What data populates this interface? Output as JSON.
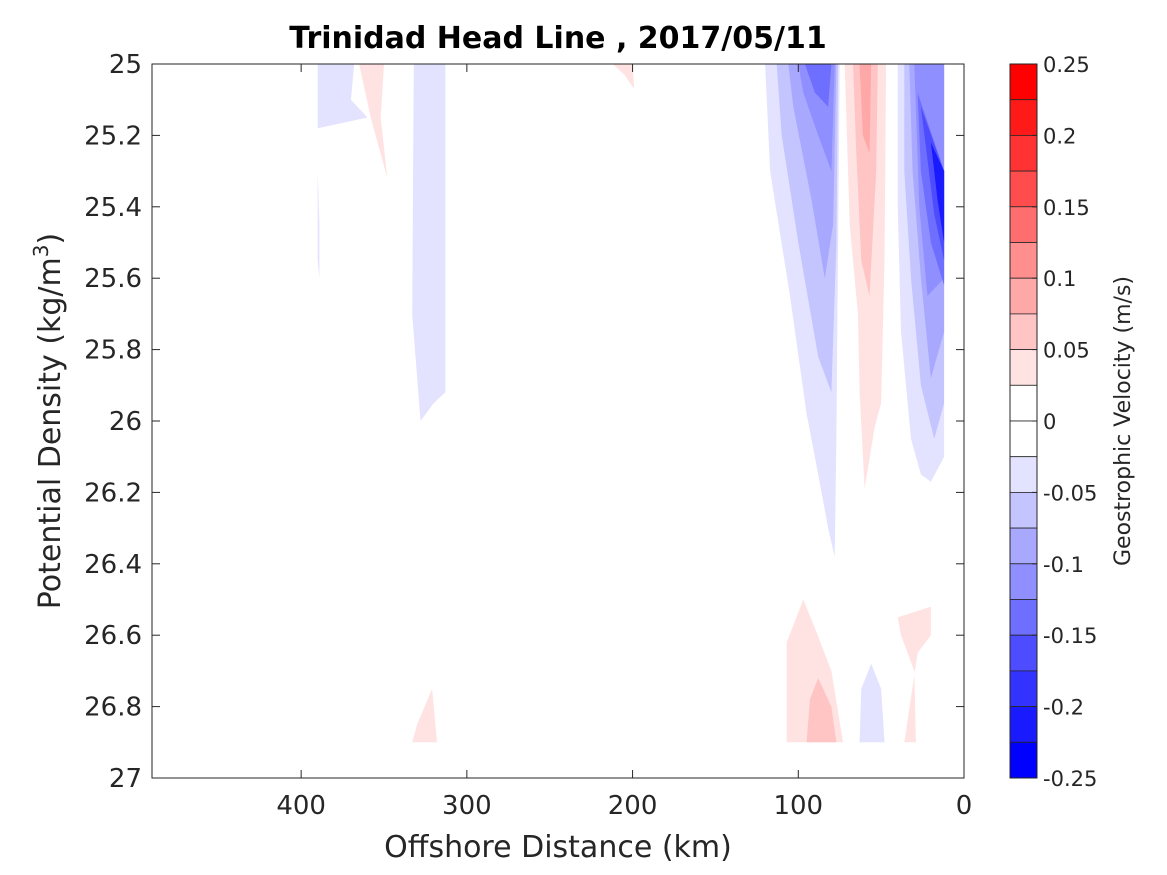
{
  "chart_data": {
    "type": "heatmap",
    "title": "Trinidad Head Line , 2017/05/11",
    "xlabel": "Offshore Distance (km)",
    "ylabel": "Potential Density (kg/m",
    "ylabel_sup": "3",
    "ylabel_close": ")",
    "colorbar_label": "Geostrophic Velocity (m/s)",
    "x_reversed": true,
    "xlim": [
      490,
      0
    ],
    "ylim": [
      25,
      27
    ],
    "y_reversed": true,
    "x_ticks": [
      400,
      300,
      200,
      100,
      0
    ],
    "y_ticks": [
      25,
      25.2,
      25.4,
      25.6,
      25.8,
      26,
      26.2,
      26.4,
      26.6,
      26.8,
      27
    ],
    "y_tick_labels": [
      "25",
      "25.2",
      "25.4",
      "25.6",
      "25.8",
      "26",
      "26.2",
      "26.4",
      "26.6",
      "26.8",
      "27"
    ],
    "clim": [
      -0.25,
      0.25
    ],
    "colorbar_ticks": [
      0.25,
      0.2,
      0.15,
      0.1,
      0.05,
      0,
      -0.05,
      -0.1,
      -0.15,
      -0.2,
      -0.25
    ],
    "colorbar_tick_labels": [
      "0.25",
      "0.2",
      "0.15",
      "0.1",
      "0.05",
      "0",
      "-0.05",
      "-0.1",
      "-0.15",
      "-0.2",
      "-0.25"
    ],
    "colorbar_levels": [
      {
        "from": 0.225,
        "to": 0.25,
        "color": "#ff0000"
      },
      {
        "from": 0.2,
        "to": 0.225,
        "color": "#ff1a1a"
      },
      {
        "from": 0.175,
        "to": 0.2,
        "color": "#ff3333"
      },
      {
        "from": 0.15,
        "to": 0.175,
        "color": "#ff4d4d"
      },
      {
        "from": 0.125,
        "to": 0.15,
        "color": "#ff6e6e"
      },
      {
        "from": 0.1,
        "to": 0.125,
        "color": "#ff8f8f"
      },
      {
        "from": 0.075,
        "to": 0.1,
        "color": "#ffa8a8"
      },
      {
        "from": 0.05,
        "to": 0.075,
        "color": "#ffc4c4"
      },
      {
        "from": 0.025,
        "to": 0.05,
        "color": "#ffe3e3"
      },
      {
        "from": 0,
        "to": 0.025,
        "color": "#ffffff"
      },
      {
        "from": -0.025,
        "to": 0,
        "color": "#ffffff"
      },
      {
        "from": -0.05,
        "to": -0.025,
        "color": "#e3e3ff"
      },
      {
        "from": -0.075,
        "to": -0.05,
        "color": "#c4c4ff"
      },
      {
        "from": -0.1,
        "to": -0.075,
        "color": "#a8a8ff"
      },
      {
        "from": -0.125,
        "to": -0.1,
        "color": "#8f8fff"
      },
      {
        "from": -0.15,
        "to": -0.125,
        "color": "#6e6eff"
      },
      {
        "from": -0.175,
        "to": -0.15,
        "color": "#4d4dff"
      },
      {
        "from": -0.2,
        "to": -0.175,
        "color": "#3333ff"
      },
      {
        "from": -0.225,
        "to": -0.2,
        "color": "#1a1aff"
      },
      {
        "from": -0.25,
        "to": -0.225,
        "color": "#0000ff"
      }
    ],
    "regions": [
      {
        "name": "blue-patch-390km",
        "color": "#e3e3ff",
        "pts": [
          [
            390,
            25
          ],
          [
            368,
            25
          ],
          [
            370,
            25.1
          ],
          [
            360,
            25.15
          ],
          [
            390,
            25.18
          ]
        ]
      },
      {
        "name": "blue-sliver-390km",
        "color": "#e3e3ff",
        "pts": [
          [
            390,
            25.3
          ],
          [
            389,
            25.45
          ],
          [
            389,
            25.6
          ],
          [
            390,
            25.55
          ]
        ]
      },
      {
        "name": "red-patch-355km",
        "color": "#ffe3e3",
        "pts": [
          [
            365,
            25
          ],
          [
            350,
            25
          ],
          [
            352,
            25.15
          ],
          [
            348,
            25.32
          ],
          [
            358,
            25.15
          ]
        ]
      },
      {
        "name": "blue-patch-325km",
        "color": "#e3e3ff",
        "pts": [
          [
            332,
            25
          ],
          [
            313,
            25
          ],
          [
            313,
            25.92
          ],
          [
            320,
            25.95
          ],
          [
            328,
            26
          ],
          [
            333,
            25.7
          ]
        ]
      },
      {
        "name": "red-patch-205km",
        "color": "#ffe3e3",
        "pts": [
          [
            212,
            25
          ],
          [
            200,
            25
          ],
          [
            199,
            25.07
          ],
          [
            205,
            25.03
          ]
        ]
      },
      {
        "name": "blue-band-outer",
        "color": "#e3e3ff",
        "pts": [
          [
            120,
            25
          ],
          [
            75,
            25
          ],
          [
            76,
            25.5
          ],
          [
            77,
            26.05
          ],
          [
            78,
            26.38
          ],
          [
            82,
            26.3
          ],
          [
            88,
            26.15
          ],
          [
            95,
            25.98
          ],
          [
            105,
            25.65
          ],
          [
            117,
            25.3
          ]
        ]
      },
      {
        "name": "blue-band-l1",
        "color": "#c4c4ff",
        "pts": [
          [
            113,
            25
          ],
          [
            76,
            25
          ],
          [
            77,
            25.5
          ],
          [
            80,
            25.92
          ],
          [
            88,
            25.82
          ],
          [
            100,
            25.5
          ],
          [
            110,
            25.2
          ]
        ]
      },
      {
        "name": "blue-band-l2",
        "color": "#a8a8ff",
        "pts": [
          [
            106,
            25
          ],
          [
            77,
            25
          ],
          [
            79,
            25.45
          ],
          [
            84,
            25.6
          ],
          [
            92,
            25.38
          ],
          [
            103,
            25.12
          ]
        ]
      },
      {
        "name": "blue-band-l3",
        "color": "#8f8fff",
        "pts": [
          [
            100,
            25
          ],
          [
            78,
            25
          ],
          [
            80,
            25.3
          ],
          [
            88,
            25.2
          ],
          [
            97,
            25.08
          ]
        ]
      },
      {
        "name": "blue-band-l4",
        "color": "#6e6eff",
        "pts": [
          [
            96,
            25
          ],
          [
            80,
            25
          ],
          [
            82,
            25.12
          ],
          [
            90,
            25.08
          ]
        ]
      },
      {
        "name": "red-band-outer",
        "color": "#ffe3e3",
        "pts": [
          [
            72,
            25
          ],
          [
            47,
            25
          ],
          [
            48,
            25.55
          ],
          [
            50,
            25.95
          ],
          [
            54,
            26.02
          ],
          [
            60,
            26.19
          ],
          [
            63,
            25.92
          ],
          [
            64,
            25.7
          ],
          [
            69,
            25.45
          ]
        ]
      },
      {
        "name": "red-band-l1",
        "color": "#ffc4c4",
        "pts": [
          [
            67,
            25
          ],
          [
            52,
            25
          ],
          [
            53,
            25.3
          ],
          [
            57,
            25.65
          ],
          [
            62,
            25.55
          ],
          [
            65,
            25.25
          ]
        ]
      },
      {
        "name": "red-band-l2",
        "color": "#ffa8a8",
        "pts": [
          [
            63,
            25
          ],
          [
            56,
            25
          ],
          [
            57,
            25.25
          ],
          [
            61,
            25.2
          ]
        ]
      },
      {
        "name": "blue-coast-outer",
        "color": "#e3e3ff",
        "pts": [
          [
            40,
            25
          ],
          [
            12,
            25
          ],
          [
            12,
            26.1
          ],
          [
            20,
            26.17
          ],
          [
            26,
            26.15
          ],
          [
            32,
            26.05
          ],
          [
            38,
            25.75
          ],
          [
            40,
            25.4
          ]
        ]
      },
      {
        "name": "blue-coast-l1",
        "color": "#c4c4ff",
        "pts": [
          [
            36,
            25
          ],
          [
            12,
            25
          ],
          [
            12,
            25.95
          ],
          [
            18,
            26.05
          ],
          [
            26,
            25.9
          ],
          [
            32,
            25.6
          ],
          [
            36,
            25.3
          ]
        ]
      },
      {
        "name": "blue-coast-l2",
        "color": "#a8a8ff",
        "pts": [
          [
            33,
            25
          ],
          [
            12,
            25
          ],
          [
            12,
            25.75
          ],
          [
            20,
            25.88
          ],
          [
            26,
            25.6
          ],
          [
            31,
            25.3
          ]
        ]
      },
      {
        "name": "blue-coast-l3",
        "color": "#8f8fff",
        "pts": [
          [
            30,
            25
          ],
          [
            12,
            25
          ],
          [
            12,
            25.6
          ],
          [
            22,
            25.65
          ],
          [
            27,
            25.4
          ]
        ]
      },
      {
        "name": "blue-coast-l4",
        "color": "#6e6eff",
        "pts": [
          [
            28,
            25.08
          ],
          [
            12,
            25.3
          ],
          [
            12,
            25.62
          ],
          [
            20,
            25.5
          ],
          [
            26,
            25.3
          ]
        ]
      },
      {
        "name": "blue-coast-l5",
        "color": "#4d4dff",
        "pts": [
          [
            26,
            25.12
          ],
          [
            12,
            25.3
          ],
          [
            12,
            25.55
          ],
          [
            18,
            25.42
          ]
        ]
      },
      {
        "name": "blue-coast-l6",
        "color": "#1a1aff",
        "pts": [
          [
            20,
            25.22
          ],
          [
            12,
            25.3
          ],
          [
            12,
            25.5
          ],
          [
            16,
            25.38
          ]
        ]
      },
      {
        "name": "red-bottom-325km",
        "color": "#ffe3e3",
        "pts": [
          [
            333,
            26.9
          ],
          [
            318,
            26.9
          ],
          [
            321,
            26.75
          ],
          [
            330,
            26.85
          ]
        ]
      },
      {
        "name": "red-bottom-95km",
        "color": "#ffe3e3",
        "pts": [
          [
            107,
            26.9
          ],
          [
            73,
            26.9
          ],
          [
            80,
            26.7
          ],
          [
            90,
            26.58
          ],
          [
            97,
            26.5
          ],
          [
            107,
            26.62
          ]
        ]
      },
      {
        "name": "red-bottom-95km-inner",
        "color": "#ffc4c4",
        "pts": [
          [
            95,
            26.9
          ],
          [
            77,
            26.9
          ],
          [
            80,
            26.8
          ],
          [
            88,
            26.72
          ],
          [
            93,
            26.78
          ]
        ]
      },
      {
        "name": "blue-bottom-55km",
        "color": "#e3e3ff",
        "pts": [
          [
            63,
            26.9
          ],
          [
            48,
            26.9
          ],
          [
            50,
            26.75
          ],
          [
            56,
            26.68
          ],
          [
            62,
            26.75
          ]
        ]
      },
      {
        "name": "red-bottom-25km",
        "color": "#ffe3e3",
        "pts": [
          [
            36,
            26.9
          ],
          [
            29,
            26.9
          ],
          [
            30,
            26.7
          ],
          [
            38,
            26.6
          ],
          [
            40,
            26.55
          ],
          [
            20,
            26.52
          ],
          [
            20,
            26.6
          ],
          [
            28,
            26.65
          ]
        ]
      }
    ]
  }
}
